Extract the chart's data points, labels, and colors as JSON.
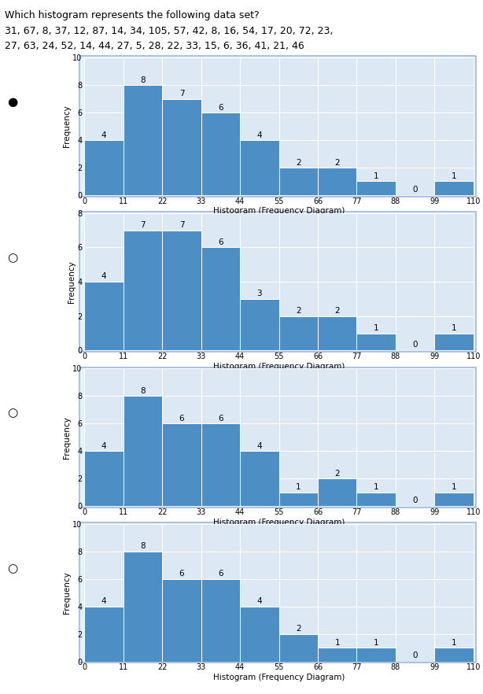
{
  "question_lines": [
    "Which histogram represents the following data set?",
    "31, 67, 8, 37, 12, 87, 14, 34, 105, 57, 42, 8, 16, 54, 17, 20, 72, 23,",
    "27, 63, 24, 52, 14, 44, 27, 5, 28, 22, 33, 15, 6, 36, 41, 21, 46"
  ],
  "bin_edges": [
    0,
    11,
    22,
    33,
    44,
    55,
    66,
    77,
    88,
    99,
    110
  ],
  "bin_labels": [
    0,
    11,
    22,
    33,
    44,
    55,
    66,
    77,
    88,
    99,
    110
  ],
  "histograms": [
    {
      "values": [
        4,
        8,
        7,
        6,
        4,
        2,
        2,
        1,
        0,
        1
      ],
      "ylim": [
        0,
        10
      ],
      "yticks": [
        0,
        2,
        4,
        6,
        8,
        10
      ],
      "selected": true
    },
    {
      "values": [
        4,
        7,
        7,
        6,
        3,
        2,
        2,
        1,
        0,
        1
      ],
      "ylim": [
        0,
        8
      ],
      "yticks": [
        0,
        2,
        4,
        6,
        8
      ],
      "selected": false
    },
    {
      "values": [
        4,
        8,
        6,
        6,
        4,
        1,
        2,
        1,
        0,
        1
      ],
      "ylim": [
        0,
        10
      ],
      "yticks": [
        0,
        2,
        4,
        6,
        8,
        10
      ],
      "selected": false
    },
    {
      "values": [
        4,
        8,
        6,
        6,
        4,
        2,
        1,
        1,
        0,
        1
      ],
      "ylim": [
        0,
        10
      ],
      "yticks": [
        0,
        2,
        4,
        6,
        8,
        10
      ],
      "selected": false
    }
  ],
  "bar_color": "#4d8fc4",
  "bar_edge_color": "white",
  "bg_color": "#dce9f5",
  "outer_bg": "#e8f0f8",
  "xlabel": "Histogram (Frequency Diagram)",
  "ylabel": "Frequency",
  "grid_color": "white",
  "tick_fontsize": 7,
  "label_fontsize": 7.5,
  "bar_label_fontsize": 7.5,
  "question_fontsize": 9
}
